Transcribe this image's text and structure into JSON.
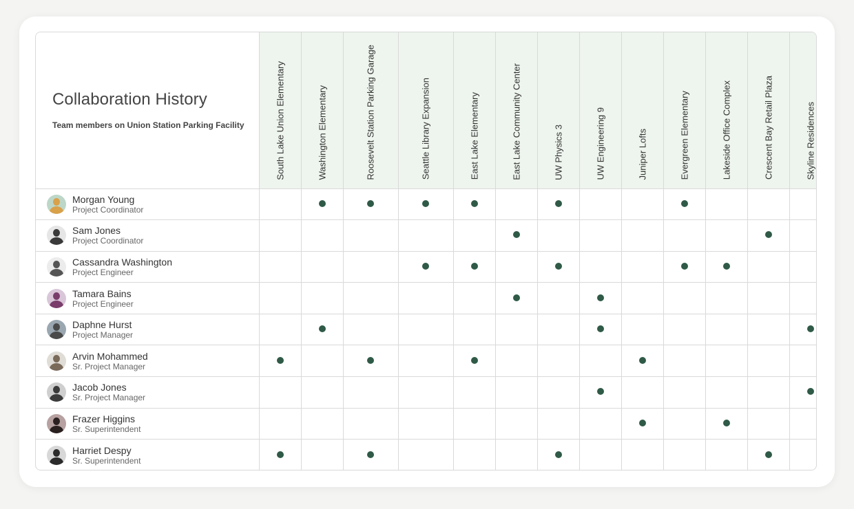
{
  "header": {
    "title": "Collaboration History",
    "subtitle": "Team members on Union Station Parking Facility"
  },
  "projects": [
    "South Lake Union Elementary",
    "Washington Elementary",
    "Roosevelt Station Parking Garage",
    "Seattle Library Expansion",
    "East Lake Elementary",
    "East Lake Community Center",
    "UW Physics 3",
    "UW Engineering 9",
    "Juniper Lofts",
    "Evergreen Elementary",
    "Lakeside Office Complex",
    "Crescent Bay Retail Plaza",
    "Skyline Residences"
  ],
  "colors": {
    "dot": "#2f5a47",
    "header_bg": "#eef4ee",
    "border": "#d9d9d9"
  },
  "members": [
    {
      "name": "Morgan Young",
      "role": "Project Coordinator",
      "avatar": "avatar-icon",
      "avatar_bg": "#bcd7c8",
      "avatar_fg": "#d9a14a",
      "collab": [
        1,
        2,
        3,
        4,
        6,
        9
      ]
    },
    {
      "name": "Sam Jones",
      "role": "Project Coordinator",
      "avatar": "avatar-icon",
      "avatar_bg": "#e6e6e6",
      "avatar_fg": "#3a3a3a",
      "collab": [
        5,
        11
      ]
    },
    {
      "name": "Cassandra Washington",
      "role": "Project Engineer",
      "avatar": "avatar-icon",
      "avatar_bg": "#ececec",
      "avatar_fg": "#555555",
      "collab": [
        3,
        4,
        6,
        9,
        10
      ]
    },
    {
      "name": "Tamara Bains",
      "role": "Project Engineer",
      "avatar": "avatar-icon",
      "avatar_bg": "#d9c7d9",
      "avatar_fg": "#7a3d6b",
      "collab": [
        5,
        7
      ]
    },
    {
      "name": "Daphne Hurst",
      "role": "Project Manager",
      "avatar": "avatar-icon",
      "avatar_bg": "#9aa7b0",
      "avatar_fg": "#4a4a4a",
      "collab": [
        1,
        7,
        12
      ]
    },
    {
      "name": "Arvin Mohammed",
      "role": "Sr. Project Manager",
      "avatar": "avatar-icon",
      "avatar_bg": "#e0dcd6",
      "avatar_fg": "#7a6a5a",
      "collab": [
        0,
        2,
        4,
        8
      ]
    },
    {
      "name": "Jacob Jones",
      "role": "Sr. Project Manager",
      "avatar": "avatar-icon",
      "avatar_bg": "#cfcfcf",
      "avatar_fg": "#3b3b3b",
      "collab": [
        7,
        12
      ]
    },
    {
      "name": "Frazer Higgins",
      "role": "Sr. Superintendent",
      "avatar": "avatar-icon",
      "avatar_bg": "#b7a1a1",
      "avatar_fg": "#2a2020",
      "collab": [
        8,
        10
      ]
    },
    {
      "name": "Harriet Despy",
      "role": "Sr. Superintendent",
      "avatar": "avatar-icon",
      "avatar_bg": "#d8d8d8",
      "avatar_fg": "#2b2b2b",
      "collab": [
        0,
        2,
        6,
        11
      ]
    }
  ]
}
